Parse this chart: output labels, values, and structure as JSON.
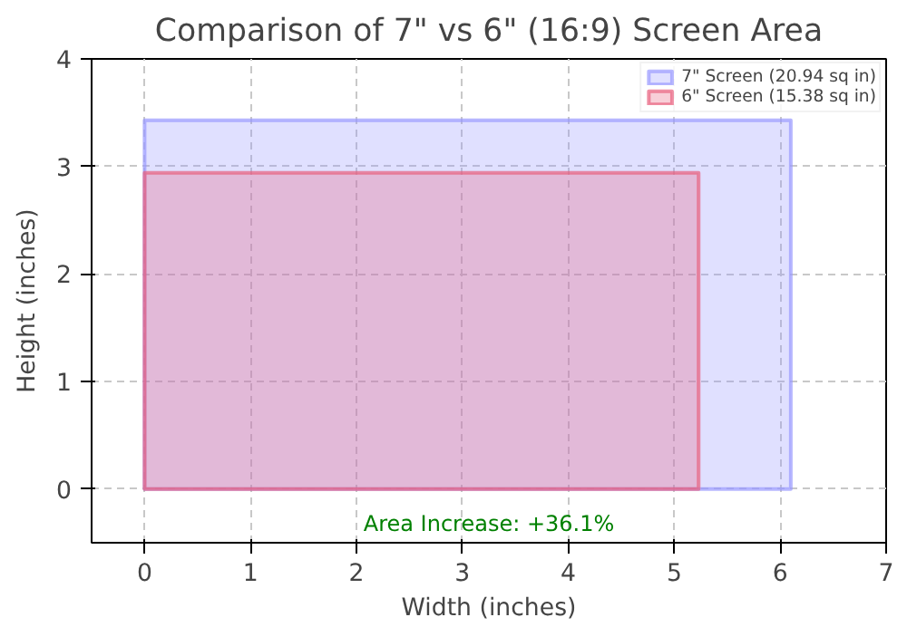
{
  "chart_data": {
    "type": "area",
    "title": "Comparison of 7\" vs 6\" (16:9) Screen Area",
    "xlabel": "Width (inches)",
    "ylabel": "Height (inches)",
    "series": [
      {
        "name": "7\" Screen (20.94 sq in)",
        "color": "#9999ff",
        "x": [
          0,
          6.1
        ],
        "values": [
          3.43,
          3.43
        ]
      },
      {
        "name": "6\" Screen (15.38 sq in)",
        "color": "#e8607e",
        "x": [
          0,
          5.23
        ],
        "values": [
          2.94,
          2.94
        ]
      }
    ],
    "annotations": [
      "Area Increase: +36.1%"
    ],
    "xlim": [
      -0.5,
      7
    ],
    "xticks": [
      0,
      1,
      2,
      3,
      4,
      5,
      6,
      7
    ],
    "ylim": [
      -0.5,
      4
    ],
    "yticks": [
      0,
      1,
      2,
      3,
      4
    ],
    "grid": true,
    "legend": "top right"
  }
}
